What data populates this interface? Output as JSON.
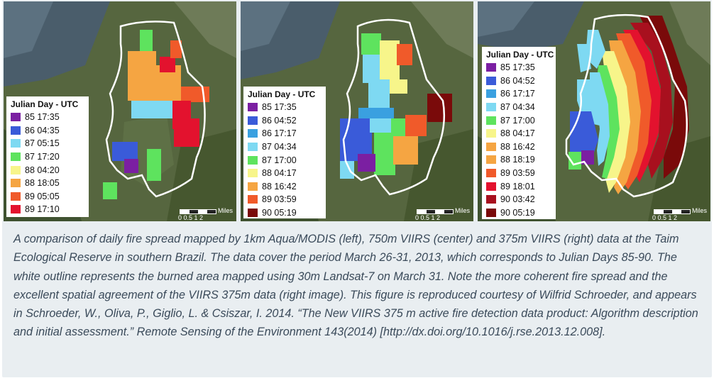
{
  "panels": [
    {
      "legend_title": "Julian Day - UTC",
      "entries": [
        {
          "label": "85 17:35",
          "color": "#7b1fa2"
        },
        {
          "label": "86 04:35",
          "color": "#3a5bd9"
        },
        {
          "label": "87 05:15",
          "color": "#7ed9f2"
        },
        {
          "label": "87 17:20",
          "color": "#5ee35e"
        },
        {
          "label": "88 04:20",
          "color": "#f7f58a"
        },
        {
          "label": "88 18:05",
          "color": "#f5a542"
        },
        {
          "label": "89 05:05",
          "color": "#f05a2a"
        },
        {
          "label": "89 17:10",
          "color": "#e3122e"
        }
      ],
      "scale": {
        "unit": "Miles",
        "ticks": "0 0.5 1      2"
      }
    },
    {
      "legend_title": "Julian Day - UTC",
      "entries": [
        {
          "label": "85 17:35",
          "color": "#7b1fa2"
        },
        {
          "label": "86 04:52",
          "color": "#3a5bd9"
        },
        {
          "label": "86 17:17",
          "color": "#3aa0e0"
        },
        {
          "label": "87 04:34",
          "color": "#7ed9f2"
        },
        {
          "label": "87 17:00",
          "color": "#5ee35e"
        },
        {
          "label": "88 04:17",
          "color": "#f7f58a"
        },
        {
          "label": "88 16:42",
          "color": "#f5a542"
        },
        {
          "label": "89 03:59",
          "color": "#f05a2a"
        },
        {
          "label": "90 05:19",
          "color": "#7a0a0a"
        }
      ],
      "scale": {
        "unit": "Miles",
        "ticks": "0 0.5 1      2"
      }
    },
    {
      "legend_title": "Julian Day - UTC",
      "entries": [
        {
          "label": "85 17:35",
          "color": "#7b1fa2"
        },
        {
          "label": "86 04:52",
          "color": "#3a5bd9"
        },
        {
          "label": "86 17:17",
          "color": "#3aa0e0"
        },
        {
          "label": "87 04:34",
          "color": "#7ed9f2"
        },
        {
          "label": "87 17:00",
          "color": "#5ee35e"
        },
        {
          "label": "88 04:17",
          "color": "#f7f58a"
        },
        {
          "label": "88 16:42",
          "color": "#f5a542"
        },
        {
          "label": "88 18:19",
          "color": "#f5a542"
        },
        {
          "label": "89 03:59",
          "color": "#f05a2a"
        },
        {
          "label": "89 18:01",
          "color": "#e3122e"
        },
        {
          "label": "90 03:42",
          "color": "#a8101e"
        },
        {
          "label": "90 05:19",
          "color": "#7a0a0a"
        }
      ],
      "scale": {
        "unit": "Miles",
        "ticks": "0 0.5 1      2"
      }
    }
  ],
  "caption": "A comparison of daily fire spread mapped by 1km Aqua/MODIS (left), 750m VIIRS (center) and 375m VIIRS (right) data at the Taim Ecological Reserve in southern Brazil. The data cover the period March 26-31, 2013, which corresponds to Julian Days 85-90. The white outline represents the burned area mapped using 30m Landsat-7 on March 31. Note the more coherent fire spread and the excellent spatial agreement of the VIIRS 375m data (right image). This figure is reproduced courtesy of Wilfrid Schroeder, and appears in Schroeder, W., Oliva, P., Giglio, L. & Csiszar, I. 2014. “The New VIIRS 375 m active fire detection data product: Algorithm description and initial assessment.” Remote Sensing of the Environment 143(2014) [http://dx.doi.org/10.1016/j.rse.2013.12.008]."
}
